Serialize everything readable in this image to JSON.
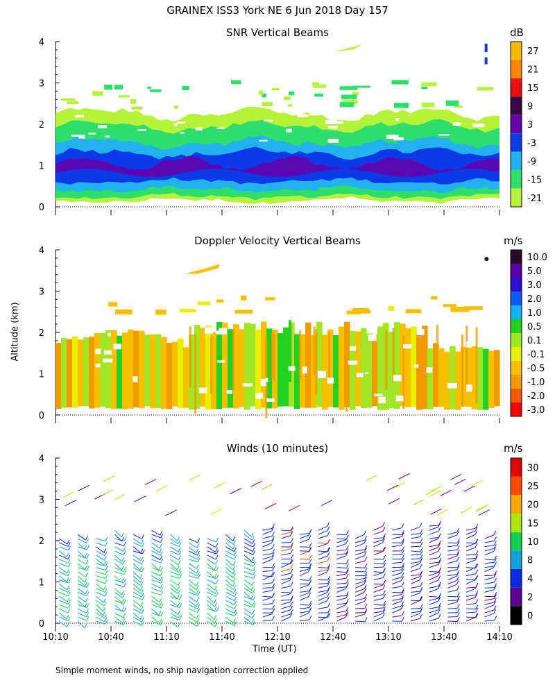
{
  "header": {
    "title": "GRAINEX ISS3 York NE   6 Jun 2018 Day 157"
  },
  "footer": {
    "note": "Simple moment winds, no ship navigation correction applied"
  },
  "axes": {
    "ylabel": "Altitude (km)",
    "xlabel": "Time (UT)",
    "y_ticks": [
      "0",
      "1",
      "2",
      "3",
      "4"
    ],
    "x_ticks": [
      "10:10",
      "10:40",
      "11:10",
      "11:40",
      "12:10",
      "12:40",
      "13:10",
      "13:40",
      "14:10"
    ]
  },
  "chart_data": [
    {
      "type": "heatmap",
      "name": "snr",
      "title": "SNR Vertical Beams",
      "unit": "dB",
      "xlabel": "Time (UT)",
      "ylabel": "Altitude (km)",
      "x_range_minutes": [
        0,
        240
      ],
      "ylim": [
        0,
        4
      ],
      "colorbar": {
        "labels": [
          "27",
          "21",
          "15",
          "9",
          "3",
          "-3",
          "-9",
          "-15",
          "-21"
        ],
        "colors": [
          "#f6ba00",
          "#ff8800",
          "#e81010",
          "#3a0a46",
          "#6a00aa",
          "#0a3ae6",
          "#22b2ee",
          "#2ede6a",
          "#b6f23a"
        ]
      },
      "layers": [
        {
          "label": "-21",
          "color": "#b6f23a"
        },
        {
          "label": "-15",
          "color": "#2ede6a"
        },
        {
          "label": "-9",
          "color": "#22b2ee"
        },
        {
          "label": "-3",
          "color": "#0a3ae6"
        },
        {
          "label": "3",
          "color": "#6a00aa"
        }
      ]
    },
    {
      "type": "heatmap",
      "name": "doppler",
      "title": "Doppler Velocity Vertical Beams",
      "unit": "m/s",
      "xlabel": "Time (UT)",
      "ylabel": "Altitude (km)",
      "x_range_minutes": [
        0,
        240
      ],
      "ylim": [
        0,
        4
      ],
      "colorbar": {
        "labels": [
          "10.0",
          "5.0",
          "3.0",
          "2.0",
          "1.0",
          "0.5",
          "0.1",
          "-0.1",
          "-0.5",
          "-1.0",
          "-2.0",
          "-3.0"
        ],
        "colors": [
          "#2a0a2a",
          "#5a00aa",
          "#2a10cc",
          "#0a5af0",
          "#14b4f0",
          "#22d022",
          "#a0e622",
          "#e6f000",
          "#f6c000",
          "#f09a00",
          "#f05a00",
          "#f00000"
        ]
      }
    },
    {
      "type": "scatter",
      "name": "winds",
      "title": "Winds (10 minutes)",
      "unit": "m/s",
      "xlabel": "Time (UT)",
      "ylabel": "Altitude (km)",
      "x_range_minutes": [
        0,
        240
      ],
      "ylim": [
        0,
        4
      ],
      "colorbar": {
        "labels": [
          "30",
          "25",
          "20",
          "15",
          "10",
          "8",
          "4",
          "2",
          "0"
        ],
        "colors": [
          "#e00000",
          "#ff4a00",
          "#ffa800",
          "#aee600",
          "#12d050",
          "#14a0d8",
          "#0a28e0",
          "#5a0090",
          "#000000"
        ]
      }
    }
  ]
}
